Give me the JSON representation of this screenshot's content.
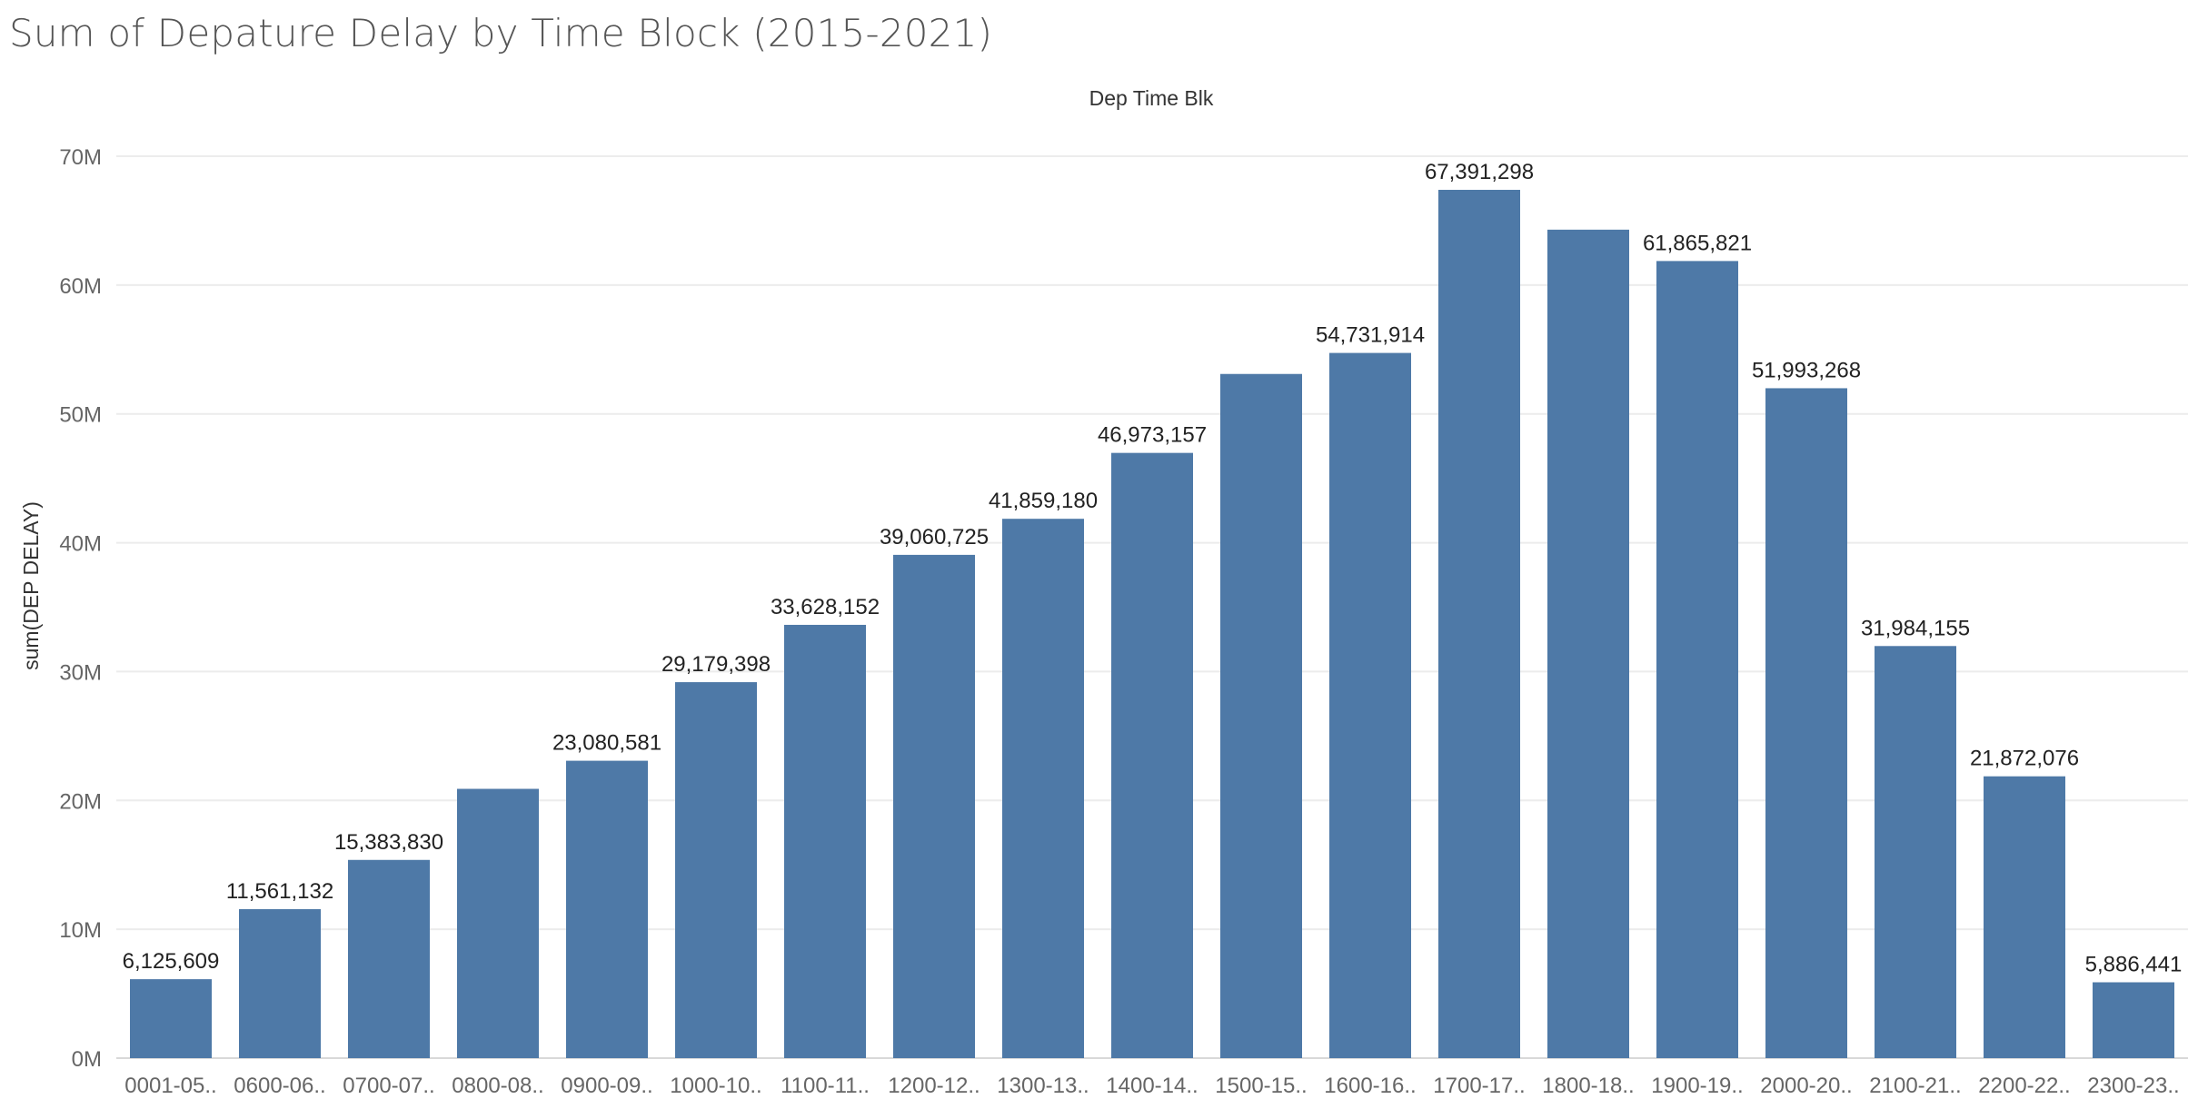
{
  "title": "Sum of Depature Delay by Time Block (2015-2021)",
  "chart_data": {
    "type": "bar",
    "title": "Sum of Depature Delay by Time Block (2015-2021)",
    "column_header": "Dep Time Blk",
    "xlabel": "",
    "ylabel": "sum(DEP DELAY)",
    "ylim": [
      0,
      70000000
    ],
    "y_ticks": [
      {
        "value": 0,
        "label": "0M"
      },
      {
        "value": 10000000,
        "label": "10M"
      },
      {
        "value": 20000000,
        "label": "20M"
      },
      {
        "value": 30000000,
        "label": "30M"
      },
      {
        "value": 40000000,
        "label": "40M"
      },
      {
        "value": 50000000,
        "label": "50M"
      },
      {
        "value": 60000000,
        "label": "60M"
      },
      {
        "value": 70000000,
        "label": "70M"
      }
    ],
    "grid": true,
    "bar_color": "#4e79a7",
    "categories": [
      "0001-05..",
      "0600-06..",
      "0700-07..",
      "0800-08..",
      "0900-09..",
      "1000-10..",
      "1100-11..",
      "1200-12..",
      "1300-13..",
      "1400-14..",
      "1500-15..",
      "1600-16..",
      "1700-17..",
      "1800-18..",
      "1900-19..",
      "2000-20..",
      "2100-21..",
      "2200-22..",
      "2300-23.."
    ],
    "values": [
      6125609,
      11561132,
      15383830,
      20900000,
      23080581,
      29179398,
      33628152,
      39060725,
      41859180,
      46973157,
      53100000,
      54731914,
      67391298,
      64300000,
      61865821,
      51993268,
      31984155,
      21872076,
      5886441
    ],
    "data_labels": [
      "6,125,609",
      "11,561,132",
      "15,383,830",
      "",
      "23,080,581",
      "29,179,398",
      "33,628,152",
      "39,060,725",
      "41,859,180",
      "46,973,157",
      "",
      "54,731,914",
      "67,391,298",
      "",
      "61,865,821",
      "51,993,268",
      "31,984,155",
      "21,872,076",
      "5,886,441"
    ]
  }
}
